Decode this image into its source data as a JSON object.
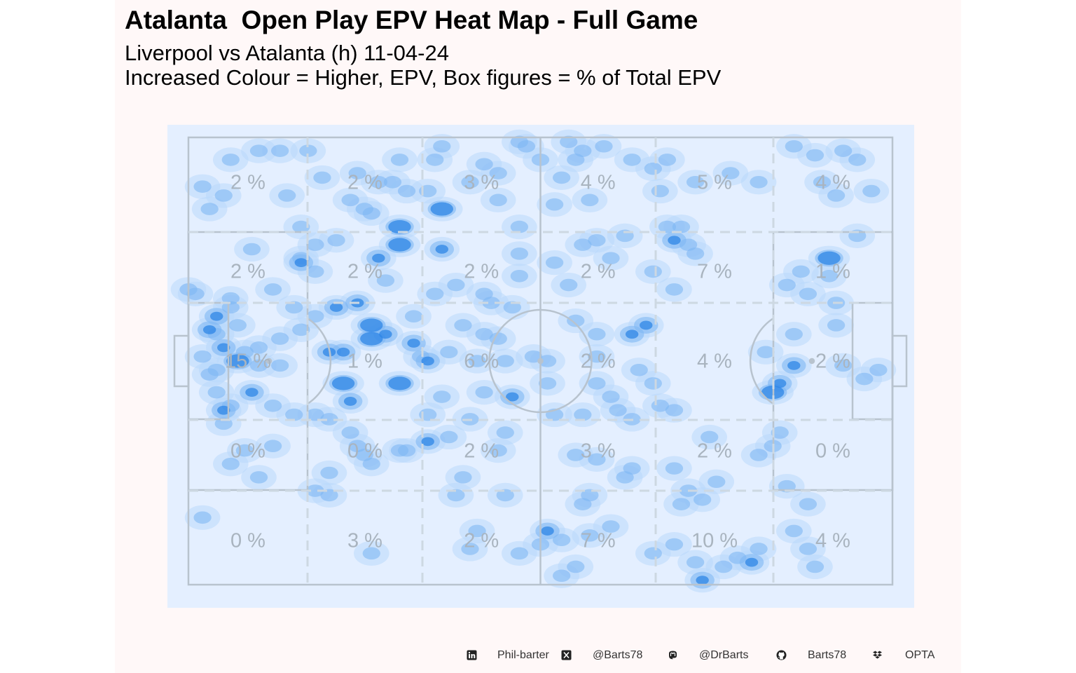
{
  "title": "Atalanta  Open Play EPV Heat Map - Full Game",
  "subtitle_line1": "Liverpool vs Atalanta (h) 11-04-24",
  "subtitle_line2": "Increased Colour = Higher, EPV, Box figures = % of Total EPV",
  "colors": {
    "panel_background": "#fff8f8",
    "pitch_background": "#e4efff",
    "pitch_lines": "#b8c3ce",
    "heat_low": "#b9d9fb",
    "heat_mid": "#7eb8f3",
    "heat_high": "#2e86e6",
    "box_label": "#a9b4bf"
  },
  "chart_data": {
    "type": "heatmap",
    "zone_columns": 6,
    "zone_rows": 5,
    "zone_percentages": [
      [
        "2 %",
        "2 %",
        "3 %",
        "4 %",
        "5 %",
        "4 %"
      ],
      [
        "2 %",
        "2 %",
        "2 %",
        "2 %",
        "7 %",
        "1 %"
      ],
      [
        "15 %",
        "1 %",
        "6 %",
        "2 %",
        "4 %",
        "2 %"
      ],
      [
        "0 %",
        "0 %",
        "2 %",
        "3 %",
        "2 %",
        "0 %"
      ],
      [
        "0 %",
        "3 %",
        "2 %",
        "7 %",
        "10 %",
        "4 %"
      ]
    ],
    "hotspots": [
      [
        0.3,
        0.05,
        1
      ],
      [
        0.55,
        0.05,
        1
      ],
      [
        0.42,
        0.06,
        1
      ],
      [
        0.68,
        0.05,
        1
      ],
      [
        0.4,
        0.92,
        1
      ],
      [
        0.26,
        0.93,
        1
      ],
      [
        0.88,
        0.92,
        1
      ],
      [
        0.89,
        0.96,
        1
      ],
      [
        0.26,
        0.45,
        3
      ],
      [
        0.26,
        0.42,
        3
      ],
      [
        0.32,
        0.46,
        2
      ],
      [
        0.3,
        0.55,
        3
      ],
      [
        0.34,
        0.68,
        2
      ],
      [
        0.2,
        0.48,
        2
      ],
      [
        0.45,
        0.5,
        1
      ],
      [
        0.56,
        0.82,
        1
      ],
      [
        0.3,
        0.2,
        3
      ],
      [
        0.35,
        0.35,
        1
      ],
      [
        0.45,
        0.8,
        1
      ],
      [
        0.27,
        0.27,
        2
      ],
      [
        0.46,
        0.58,
        2
      ],
      [
        0.18,
        0.3,
        1
      ],
      [
        0.65,
        0.42,
        2
      ],
      [
        0.82,
        0.48,
        1
      ],
      [
        0.58,
        0.44,
        1
      ],
      [
        0.69,
        0.23,
        2
      ],
      [
        0.72,
        0.26,
        1
      ],
      [
        0.31,
        0.7,
        1
      ],
      [
        0.06,
        0.6,
        1
      ],
      [
        0.09,
        0.57,
        2
      ],
      [
        0.52,
        0.28,
        1
      ],
      [
        0.86,
        0.51,
        2
      ],
      [
        0.83,
        0.69,
        1
      ],
      [
        0.12,
        0.34,
        1
      ],
      [
        0.16,
        0.43,
        1
      ],
      [
        0.44,
        0.45,
        1
      ],
      [
        0.55,
        0.71,
        1
      ],
      [
        0.81,
        0.71,
        1
      ],
      [
        0.91,
        0.27,
        3
      ],
      [
        0.85,
        0.33,
        1
      ],
      [
        0.92,
        0.13,
        1
      ],
      [
        0.92,
        0.37,
        1
      ],
      [
        0.9,
        0.1,
        1
      ],
      [
        0.95,
        0.05,
        1
      ],
      [
        0.98,
        0.52,
        1
      ],
      [
        0.25,
        0.71,
        1
      ],
      [
        0.2,
        0.75,
        1
      ],
      [
        0.72,
        0.1,
        1
      ],
      [
        0.7,
        0.2,
        1
      ],
      [
        0.13,
        0.51,
        1
      ],
      [
        0.12,
        0.6,
        1
      ],
      [
        0.1,
        0.47,
        1
      ],
      [
        0.63,
        0.44,
        2
      ],
      [
        0.58,
        0.55,
        1
      ],
      [
        0.75,
        0.77,
        1
      ],
      [
        0.74,
        0.67,
        1
      ],
      [
        0.15,
        0.38,
        1
      ],
      [
        0.09,
        0.25,
        1
      ],
      [
        0.49,
        0.49,
        1
      ],
      [
        0.07,
        0.42,
        1
      ],
      [
        0.51,
        0.5,
        1
      ],
      [
        0.55,
        0.41,
        1
      ],
      [
        0.58,
        0.49,
        1
      ],
      [
        0.16,
        0.28,
        2
      ],
      [
        0.21,
        0.38,
        2
      ],
      [
        0.24,
        0.37,
        2
      ],
      [
        0.28,
        0.44,
        2
      ],
      [
        0.3,
        0.24,
        3
      ],
      [
        0.36,
        0.16,
        3
      ],
      [
        0.36,
        0.25,
        2
      ],
      [
        0.26,
        0.17,
        1
      ],
      [
        0.28,
        0.32,
        1
      ],
      [
        0.05,
        0.64,
        1
      ],
      [
        0.45,
        0.66,
        1
      ],
      [
        0.56,
        0.62,
        1
      ],
      [
        0.61,
        0.61,
        1
      ],
      [
        0.63,
        0.74,
        1
      ],
      [
        0.44,
        0.7,
        1
      ],
      [
        0.34,
        0.62,
        1
      ],
      [
        0.4,
        0.63,
        1
      ],
      [
        0.42,
        0.57,
        1
      ],
      [
        0.33,
        0.49,
        1
      ],
      [
        0.18,
        0.62,
        1
      ],
      [
        0.64,
        0.52,
        1
      ],
      [
        0.66,
        0.55,
        1
      ],
      [
        0.18,
        0.4,
        1
      ],
      [
        0.16,
        0.27,
        1
      ],
      [
        0.29,
        0.1,
        1
      ],
      [
        0.31,
        0.12,
        1
      ],
      [
        0.34,
        0.12,
        1
      ],
      [
        0.4,
        0.1,
        1
      ],
      [
        0.16,
        0.2,
        1
      ],
      [
        0.18,
        0.24,
        1
      ],
      [
        0.21,
        0.23,
        1
      ],
      [
        0.22,
        0.48,
        2
      ],
      [
        0.22,
        0.55,
        3
      ],
      [
        0.23,
        0.59,
        2
      ],
      [
        0.2,
        0.63,
        1
      ],
      [
        0.51,
        0.55,
        1
      ],
      [
        0.42,
        0.35,
        1
      ],
      [
        0.38,
        0.33,
        1
      ],
      [
        0.34,
        0.5,
        2
      ],
      [
        0.37,
        0.48,
        1
      ],
      [
        0.41,
        0.5,
        1
      ],
      [
        0.44,
        0.08,
        1
      ],
      [
        0.48,
        0.02,
        1
      ],
      [
        0.5,
        0.05,
        1
      ],
      [
        0.54,
        0.01,
        1
      ],
      [
        0.53,
        0.09,
        1
      ],
      [
        0.68,
        0.2,
        1
      ],
      [
        0.71,
        0.24,
        1
      ],
      [
        0.67,
        0.12,
        1
      ],
      [
        0.69,
        0.34,
        1
      ],
      [
        0.83,
        0.57,
        3
      ],
      [
        0.84,
        0.55,
        2
      ],
      [
        0.86,
        0.44,
        1
      ],
      [
        0.92,
        0.42,
        1
      ],
      [
        0.93,
        0.51,
        1
      ],
      [
        0.91,
        0.31,
        1
      ],
      [
        0.96,
        0.54,
        1
      ],
      [
        0.6,
        0.27,
        1
      ],
      [
        0.66,
        0.3,
        1
      ],
      [
        0.62,
        0.22,
        1
      ],
      [
        0.58,
        0.23,
        1
      ],
      [
        0.57,
        0.14,
        1
      ],
      [
        0.52,
        0.15,
        1
      ],
      [
        0.47,
        0.2,
        1
      ],
      [
        0.47,
        0.31,
        1
      ],
      [
        0.46,
        0.38,
        1
      ],
      [
        0.43,
        0.37,
        1
      ],
      [
        0.42,
        0.44,
        1
      ],
      [
        0.39,
        0.42,
        1
      ],
      [
        0.36,
        0.58,
        1
      ],
      [
        0.39,
        0.76,
        1
      ],
      [
        0.38,
        0.8,
        1
      ],
      [
        0.41,
        0.88,
        1
      ],
      [
        0.47,
        0.93,
        1
      ],
      [
        0.5,
        0.91,
        1
      ],
      [
        0.51,
        0.88,
        2
      ],
      [
        0.53,
        0.9,
        1
      ],
      [
        0.57,
        0.89,
        1
      ],
      [
        0.6,
        0.87,
        1
      ],
      [
        0.55,
        0.96,
        1
      ],
      [
        0.53,
        0.98,
        1
      ],
      [
        0.57,
        0.8,
        1
      ],
      [
        0.58,
        0.72,
        1
      ],
      [
        0.62,
        0.76,
        1
      ],
      [
        0.7,
        0.82,
        1
      ],
      [
        0.69,
        0.91,
        1
      ],
      [
        0.66,
        0.93,
        1
      ],
      [
        0.72,
        0.95,
        1
      ],
      [
        0.73,
        0.99,
        2
      ],
      [
        0.76,
        0.96,
        1
      ],
      [
        0.78,
        0.94,
        1
      ],
      [
        0.8,
        0.95,
        2
      ],
      [
        0.81,
        0.92,
        1
      ],
      [
        0.88,
        0.82,
        1
      ],
      [
        0.85,
        0.78,
        1
      ],
      [
        0.86,
        0.88,
        1
      ],
      [
        0.69,
        0.74,
        1
      ],
      [
        0.71,
        0.79,
        1
      ],
      [
        0.73,
        0.81,
        1
      ],
      [
        0.84,
        0.66,
        1
      ],
      [
        0.63,
        0.63,
        1
      ],
      [
        0.67,
        0.6,
        1
      ],
      [
        0.69,
        0.61,
        1
      ],
      [
        0.6,
        0.58,
        1
      ],
      [
        0.52,
        0.62,
        1
      ],
      [
        0.37,
        0.67,
        1
      ],
      [
        0.3,
        0.7,
        1
      ],
      [
        0.26,
        0.73,
        1
      ],
      [
        0.24,
        0.69,
        1
      ],
      [
        0.23,
        0.66,
        1
      ],
      [
        0.12,
        0.69,
        1
      ],
      [
        0.18,
        0.79,
        1
      ],
      [
        0.2,
        0.8,
        1
      ],
      [
        0.1,
        0.76,
        1
      ],
      [
        0.02,
        0.85,
        1
      ],
      [
        0.08,
        0.7,
        1
      ],
      [
        0.04,
        0.57,
        1
      ],
      [
        0.03,
        0.53,
        1
      ],
      [
        0.02,
        0.49,
        1
      ],
      [
        0.04,
        0.44,
        1
      ],
      [
        0.06,
        0.38,
        1
      ],
      [
        0.01,
        0.35,
        1
      ],
      [
        0.03,
        0.16,
        1
      ],
      [
        0.05,
        0.13,
        1
      ],
      [
        0.02,
        0.11,
        1
      ],
      [
        0.06,
        0.05,
        1
      ],
      [
        0.1,
        0.03,
        1
      ],
      [
        0.13,
        0.03,
        1
      ],
      [
        0.17,
        0.03,
        1
      ],
      [
        0.19,
        0.09,
        1
      ],
      [
        0.14,
        0.13,
        1
      ],
      [
        0.23,
        0.14,
        1
      ],
      [
        0.25,
        0.16,
        1
      ],
      [
        0.27,
        0.1,
        1
      ],
      [
        0.35,
        0.05,
        1
      ],
      [
        0.36,
        0.02,
        1
      ],
      [
        0.47,
        0.01,
        1
      ],
      [
        0.56,
        0.03,
        1
      ],
      [
        0.59,
        0.02,
        1
      ],
      [
        0.63,
        0.05,
        1
      ],
      [
        0.66,
        0.07,
        1
      ],
      [
        0.77,
        0.08,
        1
      ],
      [
        0.81,
        0.1,
        1
      ],
      [
        0.86,
        0.02,
        1
      ],
      [
        0.89,
        0.04,
        1
      ],
      [
        0.93,
        0.03,
        1
      ],
      [
        0.97,
        0.12,
        1
      ],
      [
        0.95,
        0.22,
        1
      ],
      [
        0.87,
        0.3,
        1
      ],
      [
        0.88,
        0.35,
        1
      ],
      [
        0.56,
        0.24,
        1
      ],
      [
        0.54,
        0.33,
        1
      ],
      [
        0.47,
        0.26,
        1
      ],
      [
        0.32,
        0.4,
        1
      ],
      [
        0.13,
        0.45,
        1
      ],
      [
        0.1,
        0.51,
        1
      ],
      [
        0.08,
        0.48,
        1
      ],
      [
        0.15,
        0.62,
        1
      ],
      [
        0.06,
        0.73,
        1
      ],
      [
        0.0,
        0.34,
        1
      ],
      [
        0.05,
        0.61,
        2
      ],
      [
        0.07,
        0.5,
        3
      ],
      [
        0.05,
        0.47,
        2
      ],
      [
        0.03,
        0.43,
        2
      ],
      [
        0.04,
        0.4,
        2
      ],
      [
        0.06,
        0.36,
        1
      ],
      [
        0.04,
        0.52,
        1
      ],
      [
        0.24,
        0.08,
        1
      ],
      [
        0.44,
        0.14,
        1
      ]
    ]
  },
  "footer": {
    "linkedin_icon": "linkedin-icon",
    "linkedin": "Phil-barter",
    "x_icon": "x-twitter-icon",
    "x": "@Barts78",
    "mastodon_icon": "mastodon-icon",
    "mastodon": "@DrBarts",
    "github_icon": "github-icon",
    "github": "Barts78",
    "dropbox_icon": "dropbox-icon",
    "data_source": "OPTA"
  }
}
